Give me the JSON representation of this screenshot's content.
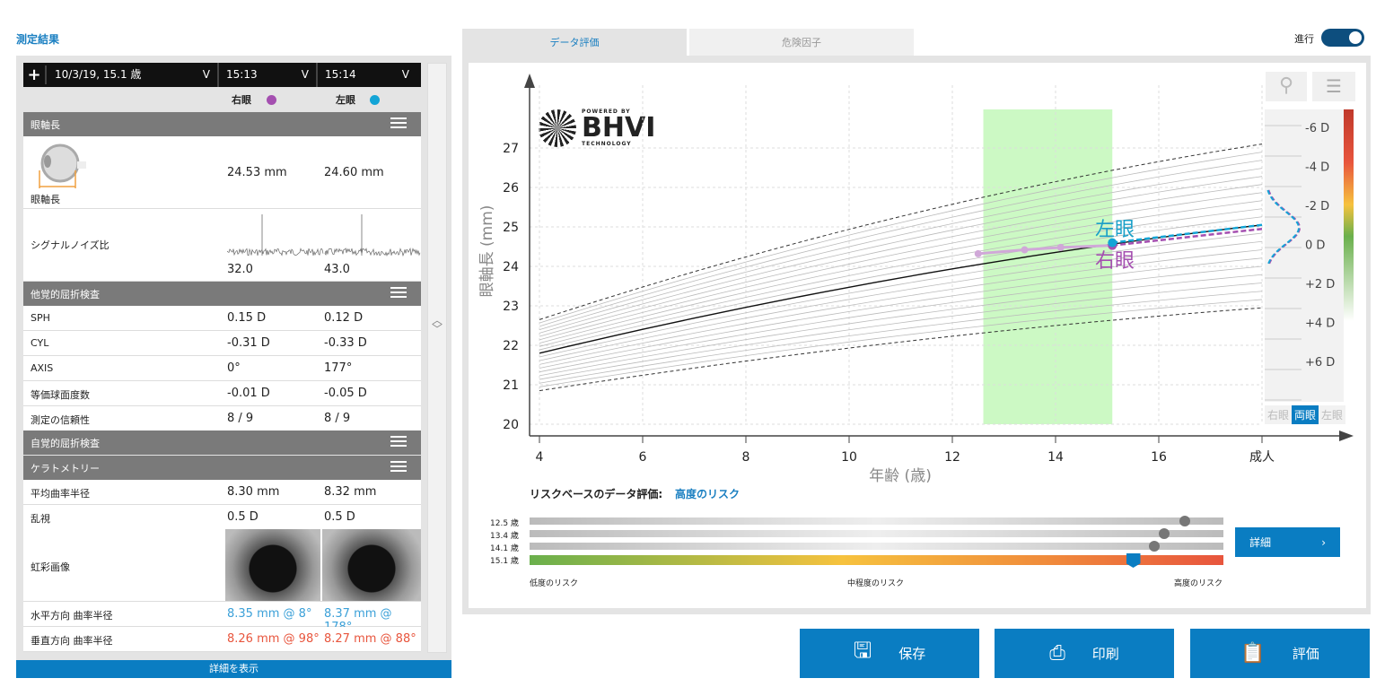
{
  "left": {
    "title": "測定結果",
    "header": {
      "add": "+",
      "date": "10/3/19, 15.1 歳",
      "time1": "15:13",
      "time2": "15:14",
      "chevron": "V"
    },
    "eyes": {
      "right": "右眼",
      "left": "左眼",
      "right_color": "#a44fb0",
      "left_color": "#13a4d6"
    },
    "sections": {
      "axial": "眼軸長",
      "objective": "他覚的屈折検査",
      "subjective": "自覚的屈折検査",
      "kerato": "ケラトメトリー"
    },
    "axial": {
      "label": "眼軸長",
      "right": "24.53 mm",
      "left": "24.60 mm"
    },
    "snr": {
      "label": "シグナルノイズ比",
      "right": "32.0",
      "left": "43.0"
    },
    "objective_rows": [
      {
        "label": "SPH",
        "right": "0.15 D",
        "left": "0.12 D"
      },
      {
        "label": "CYL",
        "right": "-0.31 D",
        "left": "-0.33 D"
      },
      {
        "label": "AXIS",
        "right": "0°",
        "left": "177°"
      },
      {
        "label": "等価球面度数",
        "right": "-0.01 D",
        "left": "-0.05 D"
      },
      {
        "label": "測定の信頼性",
        "right": "8 / 9",
        "left": "8 / 9"
      }
    ],
    "kerato_rows": [
      {
        "label": "平均曲率半径",
        "right": "8.30 mm",
        "left": "8.32 mm"
      },
      {
        "label": "乱視",
        "right": "0.5 D",
        "left": "0.5 D"
      }
    ],
    "iris": {
      "label": "虹彩画像"
    },
    "h_radius": {
      "label": "水平方向 曲率半径",
      "right": "8.35 mm @ 8°",
      "left": "8.37 mm @ 178°"
    },
    "v_radius": {
      "label": "垂直方向 曲率半径",
      "right": "8.26 mm @ 98°",
      "left": "8.27 mm @ 88°"
    },
    "show_details": "詳細を表示"
  },
  "tabs": [
    {
      "label": "データ評価",
      "active": true
    },
    {
      "label": "危険因子",
      "active": false
    }
  ],
  "toggle": {
    "label": "進行",
    "on": true
  },
  "logo": {
    "powered": "POWERED BY",
    "name": "BHVI",
    "sub": "TECHNOLOGY"
  },
  "eye_toggle": [
    "右眼",
    "両眼",
    "左眼"
  ],
  "chart_data": {
    "type": "line",
    "xlabel": "年齢 (歳)",
    "ylabel": "眼軸長 (mm)",
    "x_ticks": [
      "4",
      "6",
      "8",
      "10",
      "12",
      "14",
      "16",
      "成人"
    ],
    "x_values": [
      4,
      6,
      8,
      10,
      12,
      14,
      16,
      18
    ],
    "xlim": [
      4,
      18
    ],
    "y_ticks": [
      20,
      21,
      22,
      23,
      24,
      25,
      26,
      27
    ],
    "ylim": [
      20,
      27.5
    ],
    "grid": true,
    "highlight_range": [
      12.6,
      15.1
    ],
    "percentile_bounds": {
      "upper": [
        [
          4,
          22.65
        ],
        [
          18,
          27.1
        ]
      ],
      "median": [
        [
          4,
          21.8
        ],
        [
          18,
          25.05
        ]
      ],
      "lower": [
        [
          4,
          20.85
        ],
        [
          18,
          22.95
        ]
      ]
    },
    "series": [
      {
        "name": "右眼",
        "color": "#a44fb0",
        "points": [
          [
            12.5,
            24.32
          ],
          [
            13.4,
            24.42
          ],
          [
            14.1,
            24.48
          ],
          [
            15.1,
            24.53
          ]
        ],
        "projection": [
          [
            15.1,
            24.53
          ],
          [
            18,
            24.95
          ]
        ]
      },
      {
        "name": "左眼",
        "color": "#13a4d6",
        "points": [
          [
            15.1,
            24.6
          ]
        ],
        "projection": [
          [
            15.1,
            24.6
          ],
          [
            18,
            25.05
          ]
        ]
      }
    ],
    "refraction_scale": [
      "-6 D",
      "-4 D",
      "-2 D",
      "0 D",
      "+2 D",
      "+4 D",
      "+6 D"
    ]
  },
  "risk": {
    "label": "リスクベースのデータ評価:",
    "value": "高度のリスク",
    "rows": [
      {
        "age": "12.5 歳",
        "level": 0.945
      },
      {
        "age": "13.4 歳",
        "level": 0.915
      },
      {
        "age": "14.1 歳",
        "level": 0.9
      },
      {
        "age": "15.1 歳",
        "level": 0.87
      }
    ],
    "scale": [
      "低度のリスク",
      "中程度のリスク",
      "高度のリスク"
    ],
    "details": "詳細"
  },
  "buttons": {
    "save": "保存",
    "print": "印刷",
    "evaluate": "評価"
  }
}
